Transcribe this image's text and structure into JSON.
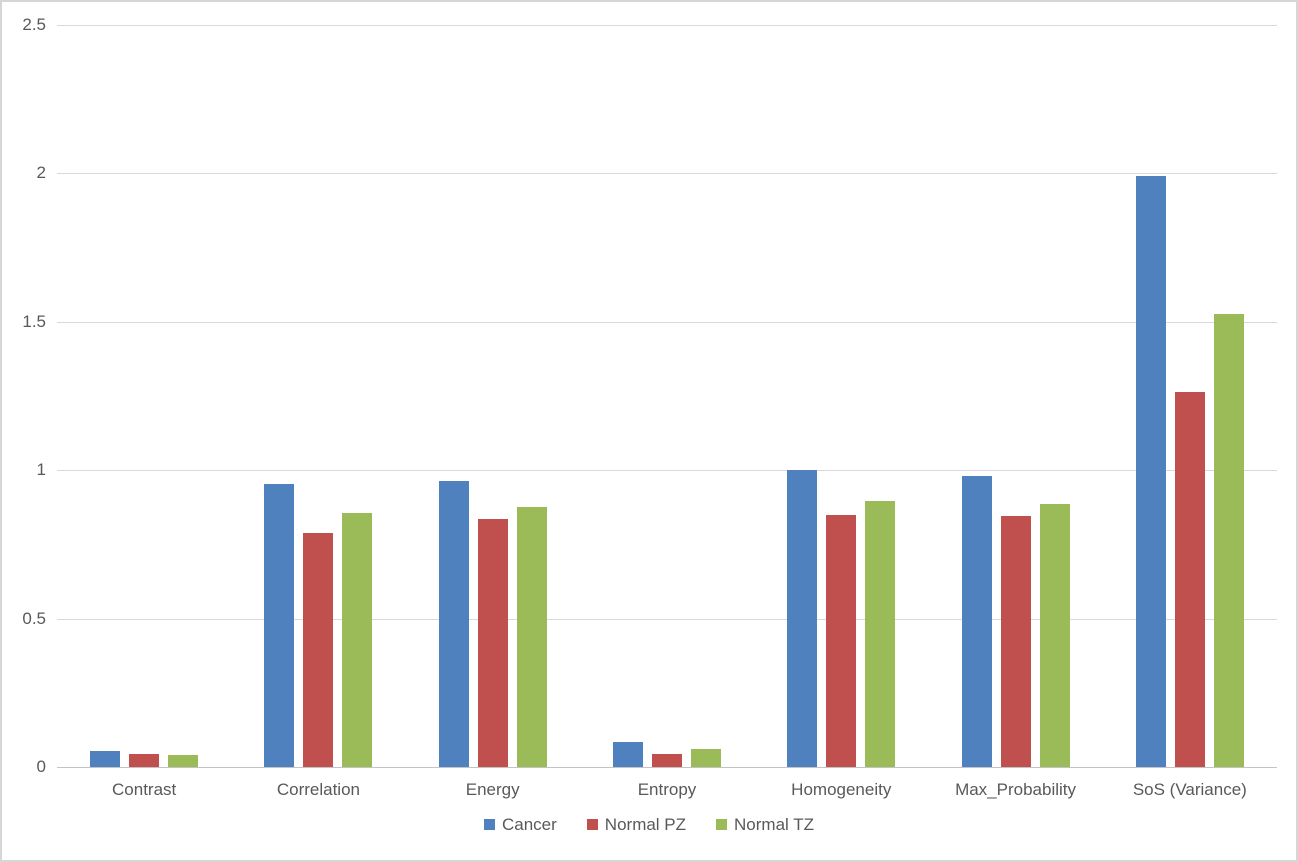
{
  "chart_data": {
    "type": "bar",
    "title": "",
    "categories": [
      "Contrast",
      "Correlation",
      "Energy",
      "Entropy",
      "Homogeneity",
      "Max_Probability",
      "SoS (Variance)"
    ],
    "series": [
      {
        "name": "Cancer",
        "color": "#4E81BD",
        "values": [
          0.055,
          0.955,
          0.965,
          0.085,
          1.0,
          0.98,
          1.99
        ]
      },
      {
        "name": "Normal PZ",
        "color": "#C0504D",
        "values": [
          0.045,
          0.79,
          0.835,
          0.045,
          0.85,
          0.845,
          1.265
        ]
      },
      {
        "name": "Normal TZ",
        "color": "#9BBB59",
        "values": [
          0.04,
          0.855,
          0.875,
          0.06,
          0.895,
          0.885,
          1.525
        ]
      }
    ],
    "ylim": [
      0,
      2.5
    ],
    "yticks": [
      0,
      0.5,
      1,
      1.5,
      2,
      2.5
    ],
    "ytick_labels": [
      "0",
      "0.5",
      "1",
      "1.5",
      "2",
      "2.5"
    ],
    "grid": true,
    "legend_position": "bottom",
    "gridline_color": "#d9d9d9",
    "axis_line_color": "#c3c3c3",
    "text_color": "#595959",
    "background_color": "#ffffff"
  }
}
